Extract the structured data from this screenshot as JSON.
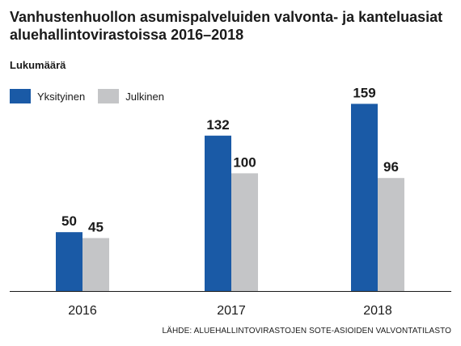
{
  "title": "Vanhustenhuollon asumispalveluiden valvonta- ja kanteluasiat aluehallintovirastoissa 2016–2018",
  "subtitle": "Lukumäärä",
  "source": "LÄHDE: ALUEHALLINTOVIRASTOJEN SOTE-ASIOIDEN VALVONTATILASTO",
  "chart_data": {
    "type": "bar",
    "categories": [
      "2016",
      "2017",
      "2018"
    ],
    "series": [
      {
        "name": "Yksityinen",
        "values": [
          50,
          132,
          159
        ],
        "color": "#1a5aa6"
      },
      {
        "name": "Julkinen",
        "values": [
          45,
          100,
          96
        ],
        "color": "#c4c5c7"
      }
    ],
    "title": "Vanhustenhuollon asumispalveluiden valvonta- ja kanteluasiat aluehallintovirastoissa 2016–2018",
    "ylabel": "Lukumäärä",
    "xlabel": "",
    "ylim": [
      0,
      160
    ],
    "grid": false,
    "legend": "top-left",
    "data_labels": true
  }
}
